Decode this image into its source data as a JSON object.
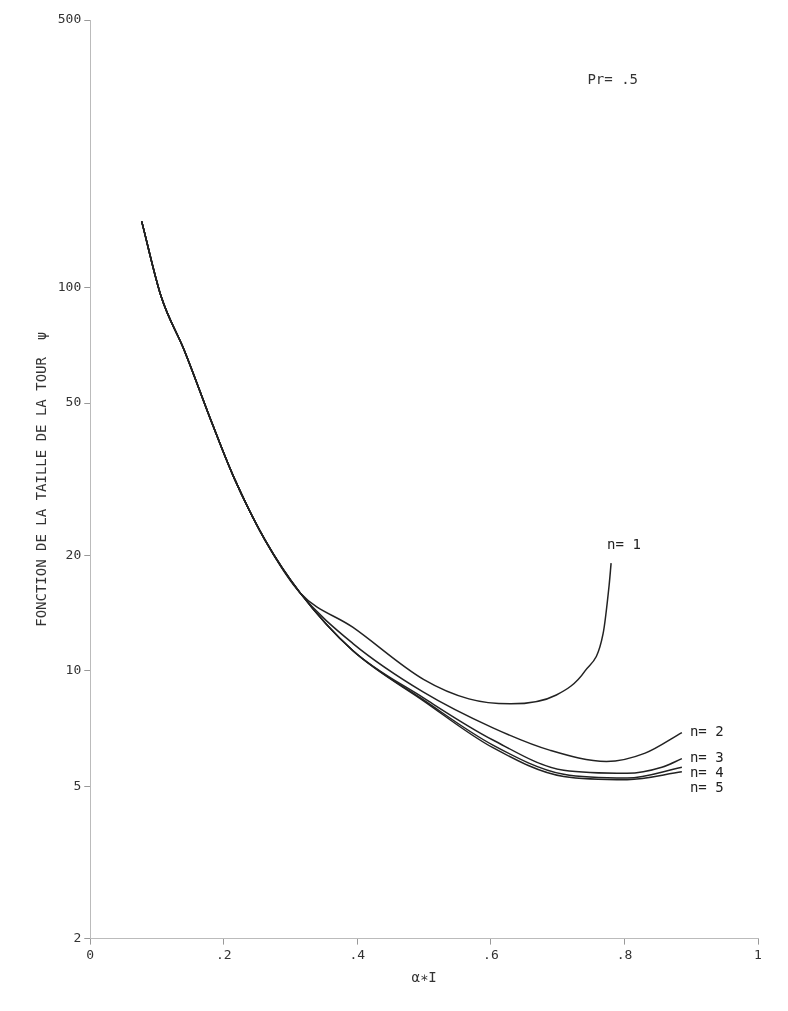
{
  "chart_data": {
    "type": "line",
    "xlabel": "α∗I",
    "ylabel": "FONCTION DE LA TAILLE DE LA TOUR  ψ",
    "annotations": [
      "Pr= .5"
    ],
    "log": "y",
    "grid": false,
    "legend": false,
    "marker": "none",
    "line_style": "solid",
    "xlim": [
      0,
      1
    ],
    "xticks": [
      0,
      {
        "value": 0.2,
        "label": ".2"
      },
      {
        "value": 0.4,
        "label": ".4"
      },
      {
        "value": 0.6,
        "label": ".6"
      },
      {
        "value": 0.8,
        "label": ".8"
      },
      1
    ],
    "ylim": [
      2,
      500
    ],
    "yticks": [
      2,
      5,
      10,
      20,
      50,
      100,
      500
    ],
    "series": [
      {
        "name": "n= 1",
        "color": "#222222",
        "x": [
          0.077,
          0.106,
          0.141,
          0.183,
          0.215,
          0.262,
          0.314,
          0.393,
          0.499,
          0.567,
          0.63,
          0.698,
          0.741,
          0.768,
          0.777,
          0.78
        ],
        "values": [
          149,
          95,
          68.5,
          44,
          32,
          21.9,
          16,
          13,
          9.5,
          8.45,
          8.2,
          8.65,
          10,
          12.5,
          16.7,
          19.1
        ]
      },
      {
        "name": "n= 2",
        "color": "#222222",
        "x": [
          0.077,
          0.106,
          0.141,
          0.183,
          0.215,
          0.262,
          0.314,
          0.393,
          0.499,
          0.603,
          0.689,
          0.773,
          0.831,
          0.886
        ],
        "values": [
          149,
          95,
          68.5,
          44,
          32,
          21.9,
          16,
          11.8,
          8.8,
          7.1,
          6.2,
          5.8,
          6.1,
          6.9
        ]
      },
      {
        "name": "n= 3",
        "color": "#222222",
        "x": [
          0.077,
          0.106,
          0.141,
          0.183,
          0.215,
          0.262,
          0.314,
          0.393,
          0.499,
          0.603,
          0.709,
          0.804,
          0.856,
          0.886
        ],
        "values": [
          149,
          95,
          68.5,
          44,
          32,
          21.9,
          16,
          11.3,
          8.5,
          6.6,
          5.5,
          5.4,
          5.6,
          5.9
        ]
      },
      {
        "name": "n= 4",
        "color": "#222222",
        "x": [
          0.077,
          0.106,
          0.141,
          0.183,
          0.215,
          0.262,
          0.314,
          0.393,
          0.499,
          0.603,
          0.709,
          0.804,
          0.886
        ],
        "values": [
          149,
          95,
          68.5,
          44,
          32,
          21.9,
          16,
          11.3,
          8.4,
          6.4,
          5.37,
          5.25,
          5.6
        ]
      },
      {
        "name": "n= 5",
        "color": "#222222",
        "x": [
          0.077,
          0.106,
          0.141,
          0.183,
          0.215,
          0.262,
          0.314,
          0.393,
          0.499,
          0.603,
          0.709,
          0.804,
          0.886
        ],
        "values": [
          149,
          95,
          68.5,
          44,
          32,
          21.9,
          16,
          11.3,
          8.35,
          6.3,
          5.3,
          5.2,
          5.45
        ]
      }
    ]
  }
}
